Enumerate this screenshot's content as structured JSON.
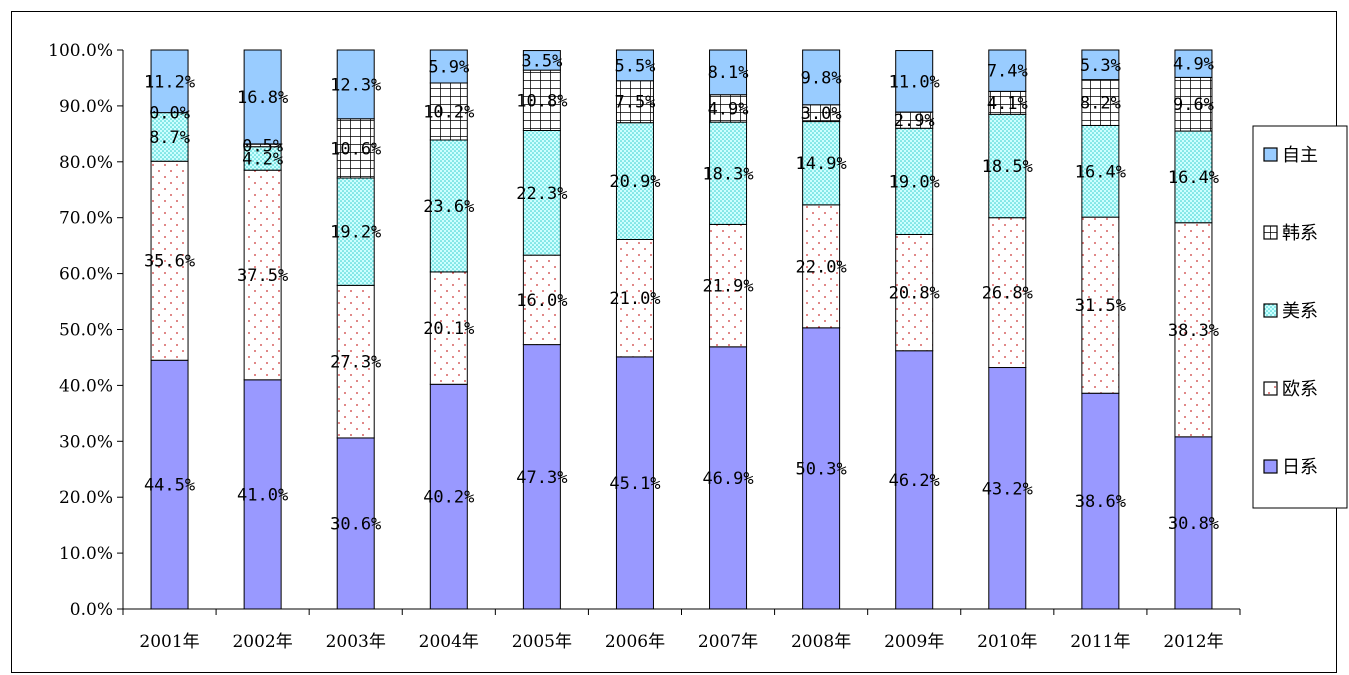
{
  "chart_data": {
    "type": "bar",
    "stacked": true,
    "title": "",
    "xlabel": "",
    "ylabel": "",
    "ylim": [
      0,
      100
    ],
    "y_tick_labels": [
      "0.0%",
      "10.0%",
      "20.0%",
      "30.0%",
      "40.0%",
      "50.0%",
      "60.0%",
      "70.0%",
      "80.0%",
      "90.0%",
      "100.0%"
    ],
    "categories": [
      "2001年",
      "2002年",
      "2003年",
      "2004年",
      "2005年",
      "2006年",
      "2007年",
      "2008年",
      "2009年",
      "2010年",
      "2011年",
      "2012年"
    ],
    "series": [
      {
        "name": "日系",
        "color": "#9999ff",
        "pattern": "solid",
        "values": [
          44.5,
          41.0,
          30.6,
          40.2,
          47.3,
          45.1,
          46.9,
          50.3,
          46.2,
          43.2,
          38.6,
          30.8
        ],
        "labels": [
          "44.5%",
          "41.0%",
          "30.6%",
          "40.2%",
          "47.3%",
          "45.1%",
          "46.9%",
          "50.3%",
          "46.2%",
          "43.2%",
          "38.6%",
          "30.8%"
        ]
      },
      {
        "name": "欧系",
        "color": "#ffffff",
        "pattern": "red-dots",
        "values": [
          35.6,
          37.5,
          27.3,
          20.1,
          16.0,
          21.0,
          21.9,
          22.0,
          20.8,
          26.8,
          31.5,
          38.3
        ],
        "labels": [
          "35.6%",
          "37.5%",
          "27.3%",
          "20.1%",
          "16.0%",
          "21.0%",
          "21.9%",
          "22.0%",
          "20.8%",
          "26.8%",
          "31.5%",
          "38.3%"
        ]
      },
      {
        "name": "美系",
        "color": "#ccffff",
        "pattern": "cyan-dots",
        "values": [
          8.7,
          4.2,
          19.2,
          23.6,
          22.3,
          20.9,
          18.3,
          14.9,
          19.0,
          18.5,
          16.4,
          16.4
        ],
        "labels": [
          "8.7%",
          "4.2%",
          "19.2%",
          "23.6%",
          "22.3%",
          "20.9%",
          "18.3%",
          "14.9%",
          "19.0%",
          "18.5%",
          "16.4%",
          "16.4%"
        ]
      },
      {
        "name": "韩系",
        "color": "#ffffff",
        "pattern": "grid",
        "values": [
          0.0,
          0.5,
          10.6,
          10.2,
          10.8,
          7.5,
          4.9,
          3.0,
          2.9,
          4.1,
          8.2,
          9.6
        ],
        "labels": [
          "0.0%",
          "0.5%",
          "10.6%",
          "10.2%",
          "10.8%",
          "7.5%",
          "4.9%",
          "3.0%",
          "2.9%",
          "4.1%",
          "8.2%",
          "9.6%"
        ]
      },
      {
        "name": "自主",
        "color": "#99ccff",
        "pattern": "solid",
        "values": [
          11.2,
          16.8,
          12.3,
          5.9,
          3.5,
          5.5,
          8.1,
          9.8,
          11.0,
          7.4,
          5.3,
          4.9
        ],
        "labels": [
          "11.2%",
          "16.8%",
          "12.3%",
          "5.9%",
          "3.5%",
          "5.5%",
          "8.1%",
          "9.8%",
          "11.0%",
          "7.4%",
          "5.3%",
          "4.9%"
        ]
      }
    ],
    "legend_position": "right",
    "legend_order": [
      "自主",
      "韩系",
      "美系",
      "欧系",
      "日系"
    ],
    "grid": false
  }
}
